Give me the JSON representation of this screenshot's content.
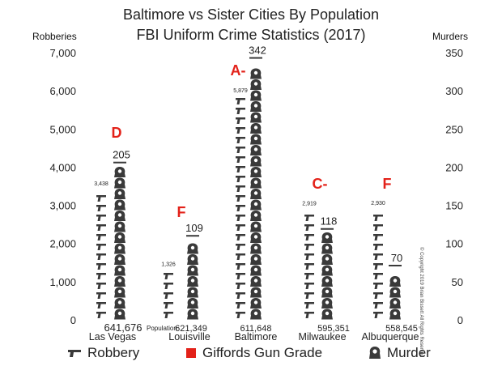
{
  "title_line1": "Baltimore vs Sister Cities By Population",
  "title_line2": "FBI Uniform Crime Statistics (2017)",
  "left_axis_title": "Robberies",
  "right_axis_title": "Murders",
  "population_label": "Population",
  "copyright": "© Copyright 2019 Brian Bissett All Rights Reserved",
  "legend": {
    "robbery": "Robbery",
    "grade": "Giffords Gun Grade",
    "murder": "Murder"
  },
  "colors": {
    "grade": "#e32119",
    "icons": "#3a3a3a",
    "text": "#222222"
  },
  "chart_data": {
    "type": "bar",
    "title": "Baltimore vs Sister Cities By Population FBI Uniform Crime Statistics (2017)",
    "categories": [
      "Las Vegas",
      "Louisville",
      "Baltimore",
      "Milwaukee",
      "Albuquerque"
    ],
    "populations": [
      "641,676",
      "621,349",
      "611,648",
      "595,351",
      "558,545"
    ],
    "grades": [
      "D",
      "F",
      "A-",
      "C-",
      "F"
    ],
    "series": [
      {
        "name": "Robbery",
        "axis": "left",
        "values": [
          3438,
          1326,
          5879,
          2919,
          2930
        ]
      },
      {
        "name": "Murder",
        "axis": "right",
        "values": [
          205,
          109,
          342,
          118,
          70
        ]
      }
    ],
    "robbery_labels": [
      "3,438",
      "1,326",
      "5,879",
      "2,919",
      "2,930"
    ],
    "murder_labels": [
      "205",
      "109",
      "342",
      "118",
      "70"
    ],
    "left_axis": {
      "label": "Robberies",
      "ylim": [
        0,
        7000
      ],
      "ticks": [
        "0",
        "1,000",
        "2,000",
        "3,000",
        "4,000",
        "5,000",
        "6,000",
        "7,000"
      ]
    },
    "right_axis": {
      "label": "Murders",
      "ylim": [
        0,
        350
      ],
      "ticks": [
        "0",
        "50",
        "100",
        "150",
        "200",
        "250",
        "300",
        "350"
      ]
    },
    "grid": false,
    "legend_position": "bottom"
  }
}
